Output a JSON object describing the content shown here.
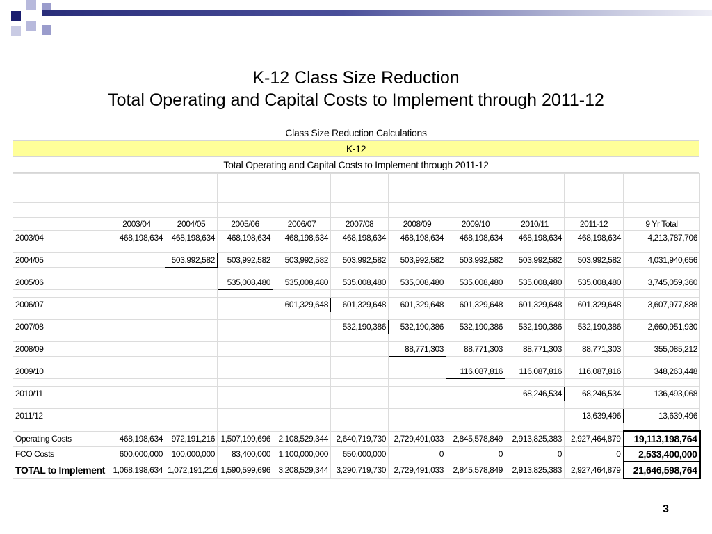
{
  "slide": {
    "title_line1": "K-12 Class Size Reduction",
    "title_line2": "Total Operating and Capital Costs to Implement through 2011-12",
    "page_number": "3",
    "colors": {
      "deco_dark": "#1a1d6e",
      "deco_light": "#9a9ccc",
      "banner_yellow": "#ffff99"
    }
  },
  "sheet": {
    "banner1": "Class Size Reduction Calculations",
    "banner2": "K-12",
    "banner3": "Total Operating and Capital Costs to Implement through 2011-12",
    "columns": [
      "2003/04",
      "2004/05",
      "2005/06",
      "2006/07",
      "2007/08",
      "2008/09",
      "2009/10",
      "2010/11",
      "2011-12",
      "9 Yr Total"
    ],
    "rows": [
      {
        "label": "2003/04",
        "start": 0,
        "values": [
          "468,198,634",
          "468,198,634",
          "468,198,634",
          "468,198,634",
          "468,198,634",
          "468,198,634",
          "468,198,634",
          "468,198,634",
          "468,198,634"
        ],
        "total": "4,213,787,706"
      },
      {
        "label": "2004/05",
        "start": 1,
        "values": [
          "503,992,582",
          "503,992,582",
          "503,992,582",
          "503,992,582",
          "503,992,582",
          "503,992,582",
          "503,992,582",
          "503,992,582"
        ],
        "total": "4,031,940,656"
      },
      {
        "label": "2005/06",
        "start": 2,
        "values": [
          "535,008,480",
          "535,008,480",
          "535,008,480",
          "535,008,480",
          "535,008,480",
          "535,008,480",
          "535,008,480"
        ],
        "total": "3,745,059,360"
      },
      {
        "label": "2006/07",
        "start": 3,
        "values": [
          "601,329,648",
          "601,329,648",
          "601,329,648",
          "601,329,648",
          "601,329,648",
          "601,329,648"
        ],
        "total": "3,607,977,888"
      },
      {
        "label": "2007/08",
        "start": 4,
        "values": [
          "532,190,386",
          "532,190,386",
          "532,190,386",
          "532,190,386",
          "532,190,386"
        ],
        "total": "2,660,951,930"
      },
      {
        "label": "2008/09",
        "start": 5,
        "values": [
          "88,771,303",
          "88,771,303",
          "88,771,303",
          "88,771,303"
        ],
        "total": "355,085,212"
      },
      {
        "label": "2009/10",
        "start": 6,
        "values": [
          "116,087,816",
          "116,087,816",
          "116,087,816"
        ],
        "total": "348,263,448"
      },
      {
        "label": "2010/11",
        "start": 7,
        "values": [
          "68,246,534",
          "68,246,534"
        ],
        "total": "136,493,068"
      },
      {
        "label": "2011/12",
        "start": 8,
        "values": [
          "13,639,496"
        ],
        "total": "13,639,496"
      }
    ],
    "summary": [
      {
        "label": "Operating Costs",
        "values": [
          "468,198,634",
          "972,191,216",
          "1,507,199,696",
          "2,108,529,344",
          "2,640,719,730",
          "2,729,491,033",
          "2,845,578,849",
          "2,913,825,383",
          "2,927,464,879"
        ],
        "total": "19,113,198,764"
      },
      {
        "label": "FCO Costs",
        "values": [
          "600,000,000",
          "100,000,000",
          "83,400,000",
          "1,100,000,000",
          "650,000,000",
          "0",
          "0",
          "0",
          "0"
        ],
        "total": "2,533,400,000"
      },
      {
        "label": "TOTAL to Implement",
        "values": [
          "1,068,198,634",
          "1,072,191,216",
          "1,590,599,696",
          "3,208,529,344",
          "3,290,719,730",
          "2,729,491,033",
          "2,845,578,849",
          "2,913,825,383",
          "2,927,464,879"
        ],
        "total": "21,646,598,764"
      }
    ]
  }
}
